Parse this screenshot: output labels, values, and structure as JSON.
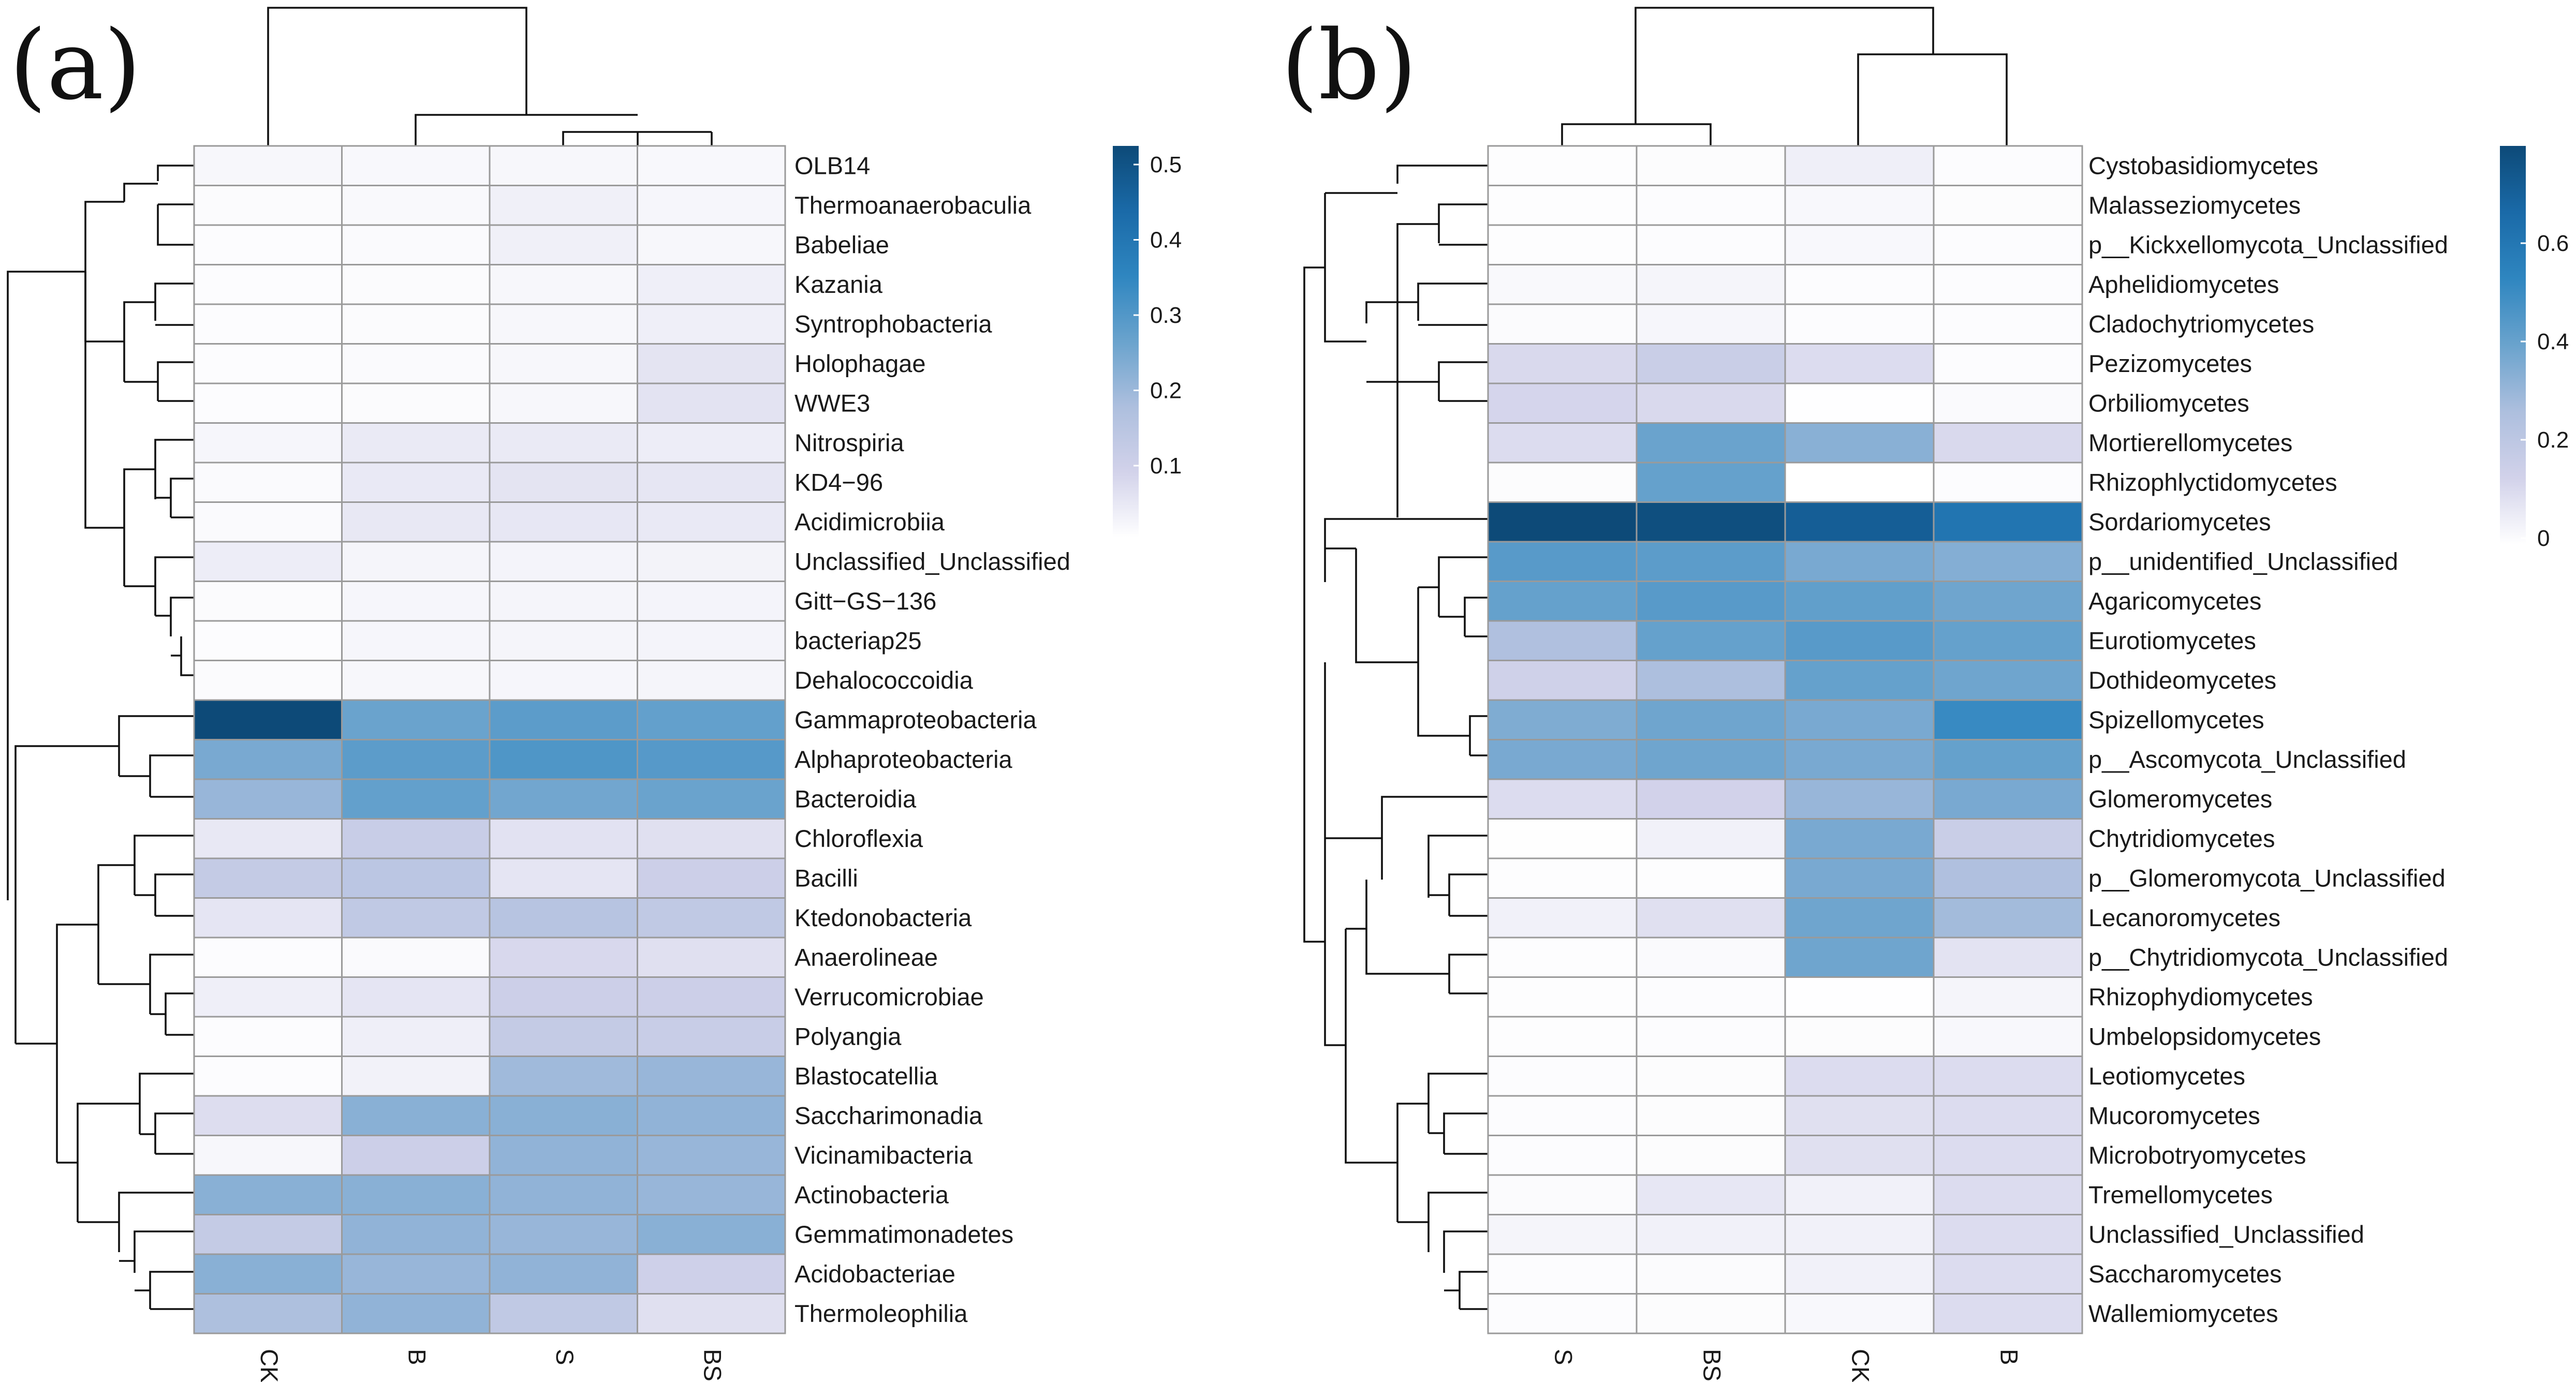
{
  "chart_data": [
    {
      "type": "heatmap",
      "panel": "(a)",
      "columns": [
        "CK",
        "B",
        "S",
        "BS"
      ],
      "rows": [
        "OLB14",
        "Thermoanaerobaculia",
        "Babeliae",
        "Kazania",
        "Syntrophobacteria",
        "Holophagae",
        "WWE3",
        "Nitrospiria",
        "KD4−96",
        "Acidimicrobiia",
        "Unclassified_Unclassified",
        "Gitt−GS−136",
        "bacteriap25",
        "Dehalococcoidia",
        "Gammaproteobacteria",
        "Alphaproteobacteria",
        "Bacteroidia",
        "Chloroflexia",
        "Bacilli",
        "Ktedonobacteria",
        "Anaerolineae",
        "Verrucomicrobiae",
        "Polyangia",
        "Blastocatellia",
        "Saccharimonadia",
        "Vicinamibacteria",
        "Actinobacteria",
        "Gemmatimonadetes",
        "Acidobacteriae",
        "Thermoleophilia"
      ],
      "values": [
        [
          0.015,
          0.014,
          0.015,
          0.014
        ],
        [
          0.008,
          0.011,
          0.028,
          0.018
        ],
        [
          0.005,
          0.009,
          0.028,
          0.016
        ],
        [
          0.006,
          0.007,
          0.015,
          0.03
        ],
        [
          0.006,
          0.007,
          0.015,
          0.03
        ],
        [
          0.006,
          0.01,
          0.016,
          0.052
        ],
        [
          0.006,
          0.008,
          0.015,
          0.054
        ],
        [
          0.018,
          0.04,
          0.04,
          0.034
        ],
        [
          0.01,
          0.042,
          0.052,
          0.048
        ],
        [
          0.01,
          0.044,
          0.046,
          0.042
        ],
        [
          0.035,
          0.02,
          0.022,
          0.024
        ],
        [
          0.007,
          0.018,
          0.02,
          0.022
        ],
        [
          0.006,
          0.018,
          0.02,
          0.022
        ],
        [
          0.007,
          0.016,
          0.018,
          0.02
        ],
        [
          0.52,
          0.26,
          0.28,
          0.27
        ],
        [
          0.24,
          0.28,
          0.3,
          0.29
        ],
        [
          0.2,
          0.27,
          0.25,
          0.26
        ],
        [
          0.045,
          0.11,
          0.055,
          0.06
        ],
        [
          0.12,
          0.14,
          0.05,
          0.1
        ],
        [
          0.05,
          0.13,
          0.15,
          0.13
        ],
        [
          0.005,
          0.01,
          0.075,
          0.06
        ],
        [
          0.03,
          0.05,
          0.1,
          0.1
        ],
        [
          0.006,
          0.03,
          0.12,
          0.11
        ],
        [
          0.006,
          0.025,
          0.19,
          0.2
        ],
        [
          0.065,
          0.22,
          0.22,
          0.21
        ],
        [
          0.015,
          0.1,
          0.21,
          0.2
        ],
        [
          0.22,
          0.22,
          0.21,
          0.2
        ],
        [
          0.12,
          0.21,
          0.2,
          0.22
        ],
        [
          0.22,
          0.2,
          0.21,
          0.095
        ],
        [
          0.17,
          0.21,
          0.13,
          0.06
        ]
      ],
      "color_scale": {
        "min": 0,
        "max": 0.52,
        "colors": [
          "#ffffff",
          "#d2d2ea",
          "#adbfde",
          "#6aa3cd",
          "#2f86c0",
          "#1a6aa8",
          "#0d4a78"
        ]
      },
      "colorbar_ticks": [
        0.1,
        0.2,
        0.3,
        0.4,
        0.5
      ],
      "col_dendrogram_order": [
        "CK",
        "B",
        "S",
        "BS"
      ],
      "col_dendrogram": "((CK),((B),((S),(BS))))",
      "row_dendrogram": "(((OLB14,(Thermoanaerobaculia,Babeliae)),((Kazania,Syntrophobacteria),(Holophagae,WWE3))),((Nitrospiria,(KD4-96,Acidimicrobiia)),(Unclassified_Unclassified,(Gitt-GS-136,(bacteriap25,Dehalococcoidia))))),((Gammaproteobacteria,(Alphaproteobacteria,Bacteroidia)),(((Chloroflexia,(Bacilli,Ktedonobacteria)),((Anaerolineae,(Verrucomicrobiae,Polyangia)))),((Blastocatellia,(Saccharimonadia,Vicinamibacteria)),(Actinobacteria,(Gemmatimonadetes,(Acidobacteriae,Thermoleophilia))))))"
    },
    {
      "type": "heatmap",
      "panel": "(b)",
      "columns": [
        "S",
        "BS",
        "CK",
        "B"
      ],
      "rows": [
        "Cystobasidiomycetes",
        "Malasseziomycetes",
        "p__Kickxellomycota_Unclassified",
        "Aphelidiomycetes",
        "Cladochytriomycetes",
        "Pezizomycetes",
        "Orbiliomycetes",
        "Mortierellomycetes",
        "Rhizophlyctidomycetes",
        "Sordariomycetes",
        "p__unidentified_Unclassified",
        "Agaricomycetes",
        "Eurotiomycetes",
        "Dothideomycetes",
        "Spizellomycetes",
        "p__Ascomycota_Unclassified",
        "Glomeromycetes",
        "Chytridiomycetes",
        "p__Glomeromycota_Unclassified",
        "Lecanoromycetes",
        "p__Chytridiomycota_Unclassified",
        "Rhizophydiomycetes",
        "Umbelopsidomycetes",
        "Leotiomycetes",
        "Mucoromycetes",
        "Microbotryomycetes",
        "Tremellomycetes",
        "Unclassified_Unclassified",
        "Saccharomycetes",
        "Wallemiomycetes"
      ],
      "values": [
        [
          0.005,
          0.01,
          0.045,
          0.008
        ],
        [
          0.005,
          0.008,
          0.02,
          0.01
        ],
        [
          0.005,
          0.008,
          0.02,
          0.008
        ],
        [
          0.018,
          0.028,
          0.008,
          0.008
        ],
        [
          0.012,
          0.025,
          0.008,
          0.008
        ],
        [
          0.11,
          0.16,
          0.1,
          0.008
        ],
        [
          0.12,
          0.11,
          0.003,
          0.015
        ],
        [
          0.1,
          0.39,
          0.33,
          0.11
        ],
        [
          0.01,
          0.4,
          0.001,
          0.008
        ],
        [
          0.78,
          0.76,
          0.7,
          0.6
        ],
        [
          0.43,
          0.42,
          0.36,
          0.34
        ],
        [
          0.4,
          0.43,
          0.41,
          0.38
        ],
        [
          0.25,
          0.4,
          0.43,
          0.4
        ],
        [
          0.14,
          0.26,
          0.4,
          0.38
        ],
        [
          0.35,
          0.38,
          0.36,
          0.5
        ],
        [
          0.36,
          0.38,
          0.36,
          0.4
        ],
        [
          0.1,
          0.13,
          0.3,
          0.36
        ],
        [
          0.004,
          0.04,
          0.36,
          0.16
        ],
        [
          0.005,
          0.005,
          0.36,
          0.25
        ],
        [
          0.04,
          0.09,
          0.38,
          0.28
        ],
        [
          0.005,
          0.015,
          0.38,
          0.08
        ],
        [
          0.005,
          0.008,
          0.003,
          0.03
        ],
        [
          0.006,
          0.008,
          0.01,
          0.02
        ],
        [
          0.008,
          0.01,
          0.1,
          0.1
        ],
        [
          0.008,
          0.01,
          0.09,
          0.1
        ],
        [
          0.008,
          0.01,
          0.09,
          0.1
        ],
        [
          0.012,
          0.07,
          0.04,
          0.1
        ],
        [
          0.03,
          0.04,
          0.04,
          0.1
        ],
        [
          0.008,
          0.012,
          0.04,
          0.1
        ],
        [
          0.008,
          0.01,
          0.02,
          0.1
        ]
      ],
      "color_scale": {
        "min": 0,
        "max": 0.78,
        "colors": [
          "#ffffff",
          "#d2d2ea",
          "#adbfde",
          "#6aa3cd",
          "#2f86c0",
          "#1a6aa8",
          "#0d4a78"
        ]
      },
      "colorbar_ticks": [
        0,
        0.2,
        0.4,
        0.6
      ],
      "col_dendrogram_order": [
        "S",
        "BS",
        "CK",
        "B"
      ],
      "col_dendrogram": "(((S),(BS)),((CK),(B)))",
      "row_dendrogram": "(((Cystobasidiomycetes,Malasseziomycetes),(p__Kickxellomycota_Unclassified,(Aphelidiomycetes,Cladochytriomycetes))),((Pezizomycetes,Orbiliomycetes),(Mortierellomycetes,Rhizophlyctidomycetes))),((Sordariomycetes,((p__unidentified_Unclassified,(Agaricomycetes,(Eurotiomycetes,Dothideomycetes))),(Spizellomycetes,p__Ascomycota_Unclassified))),((Glomeromycetes,(Chytridiomycetes,(p__Glomeromycota_Unclassified,(Lecanoromycetes,p__Chytridiomycota_Unclassified)))),((Rhizophydiomycetes,Umbelopsidomycetes),((Leotiomycetes,(Mucoromycetes,Microbotryomycetes)),(Tremellomycetes,(Unclassified_Unclassified,(Saccharomycetes,Wallemiomycetes)))))))"
    }
  ]
}
